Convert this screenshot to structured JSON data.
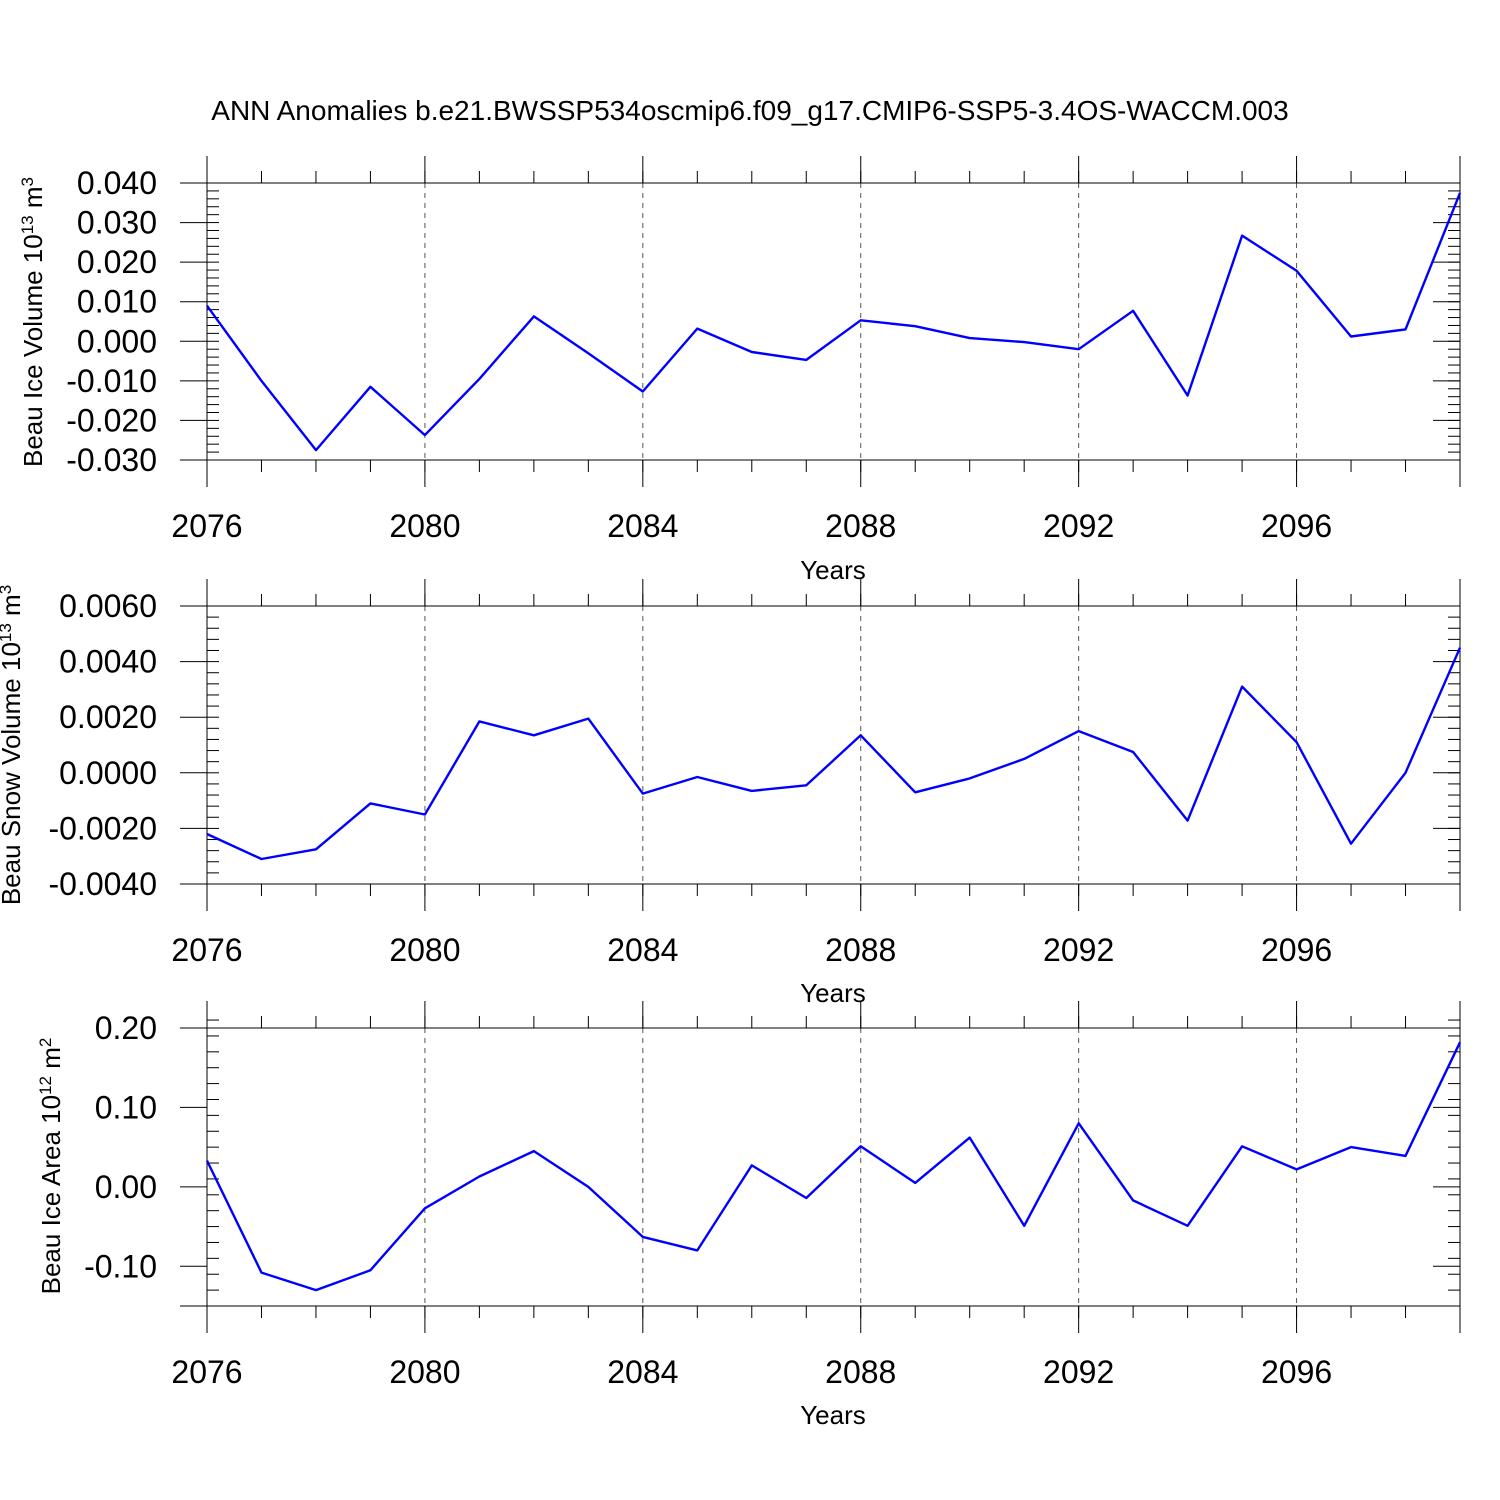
{
  "title": "ANN Anomalies b.e21.BWSSP534oscmip6.f09_g17.CMIP6-SSP5-3.4OS-WACCM.003",
  "colors": {
    "line": "#0000ff",
    "axis": "#000000"
  },
  "chart_data": [
    {
      "type": "line",
      "ylabel_text": "Beau Ice Volume 10",
      "ylabel_exp": "13",
      "ylabel_unit": " m",
      "ylabel_unit_exp": "3",
      "xlabel": "Years",
      "xlim": [
        2076,
        2099
      ],
      "ylim": [
        -0.03,
        0.04
      ],
      "yticks": [
        -0.03,
        -0.02,
        -0.01,
        0.0,
        0.01,
        0.02,
        0.03,
        0.04
      ],
      "ytick_labels": [
        "-0.030",
        "-0.020",
        "-0.010",
        "0.000",
        "0.010",
        "0.020",
        "0.030",
        "0.040"
      ],
      "yminor_step": 0.002,
      "xticks": [
        2076,
        2080,
        2084,
        2088,
        2092,
        2096
      ],
      "xtick_labels": [
        "2076",
        "2080",
        "2084",
        "2088",
        "2092",
        "2096"
      ],
      "x": [
        2076,
        2077,
        2078,
        2079,
        2080,
        2081,
        2082,
        2083,
        2084,
        2085,
        2086,
        2087,
        2088,
        2089,
        2090,
        2091,
        2092,
        2093,
        2094,
        2095,
        2096,
        2097,
        2098,
        2099
      ],
      "values": [
        0.009,
        -0.01,
        -0.0275,
        -0.0115,
        -0.0237,
        -0.0095,
        0.0063,
        -0.003,
        -0.0127,
        0.0032,
        -0.0027,
        -0.0047,
        0.0053,
        0.0038,
        0.0008,
        -0.0002,
        -0.002,
        0.0077,
        -0.0137,
        0.0267,
        0.0178,
        0.0012,
        0.003,
        0.0375
      ]
    },
    {
      "type": "line",
      "ylabel_text": "Beau Snow Volume 10",
      "ylabel_exp": "13",
      "ylabel_unit": " m",
      "ylabel_unit_exp": "3",
      "xlabel": "Years",
      "xlim": [
        2076,
        2099
      ],
      "ylim": [
        -0.004,
        0.006
      ],
      "yticks": [
        -0.004,
        -0.002,
        0.0,
        0.002,
        0.004,
        0.006
      ],
      "ytick_labels": [
        "-0.0040",
        "-0.0020",
        "0.0000",
        "0.0020",
        "0.0040",
        "0.0060"
      ],
      "yminor_step": 0.0004,
      "xticks": [
        2076,
        2080,
        2084,
        2088,
        2092,
        2096
      ],
      "xtick_labels": [
        "2076",
        "2080",
        "2084",
        "2088",
        "2092",
        "2096"
      ],
      "x": [
        2076,
        2077,
        2078,
        2079,
        2080,
        2081,
        2082,
        2083,
        2084,
        2085,
        2086,
        2087,
        2088,
        2089,
        2090,
        2091,
        2092,
        2093,
        2094,
        2095,
        2096,
        2097,
        2098,
        2099
      ],
      "values": [
        -0.0022,
        -0.0031,
        -0.00275,
        -0.0011,
        -0.0015,
        0.00185,
        0.00135,
        0.00195,
        -0.00075,
        -0.00015,
        -0.00065,
        -0.00045,
        0.00135,
        -0.0007,
        -0.0002,
        0.0005,
        0.0015,
        0.00075,
        -0.00172,
        0.0031,
        0.0011,
        -0.00255,
        0.0,
        0.0045
      ]
    },
    {
      "type": "line",
      "ylabel_text": "Beau Ice Area 10",
      "ylabel_exp": "12",
      "ylabel_unit": " m",
      "ylabel_unit_exp": "2",
      "xlabel": "Years",
      "xlim": [
        2076,
        2099
      ],
      "ylim": [
        -0.15,
        0.2
      ],
      "yticks": [
        -0.1,
        0.0,
        0.1,
        0.2
      ],
      "ytick_labels": [
        "-0.10",
        "0.00",
        "0.10",
        "0.20"
      ],
      "yminor_step": 0.02,
      "xticks": [
        2076,
        2080,
        2084,
        2088,
        2092,
        2096
      ],
      "xtick_labels": [
        "2076",
        "2080",
        "2084",
        "2088",
        "2092",
        "2096"
      ],
      "x": [
        2076,
        2077,
        2078,
        2079,
        2080,
        2081,
        2082,
        2083,
        2084,
        2085,
        2086,
        2087,
        2088,
        2089,
        2090,
        2091,
        2092,
        2093,
        2094,
        2095,
        2096,
        2097,
        2098,
        2099
      ],
      "values": [
        0.033,
        -0.108,
        -0.13,
        -0.105,
        -0.027,
        0.013,
        0.045,
        0.0,
        -0.063,
        -0.08,
        0.027,
        -0.014,
        0.051,
        0.005,
        0.062,
        -0.049,
        0.08,
        -0.017,
        -0.049,
        0.051,
        0.022,
        0.05,
        0.039,
        0.182
      ]
    }
  ]
}
